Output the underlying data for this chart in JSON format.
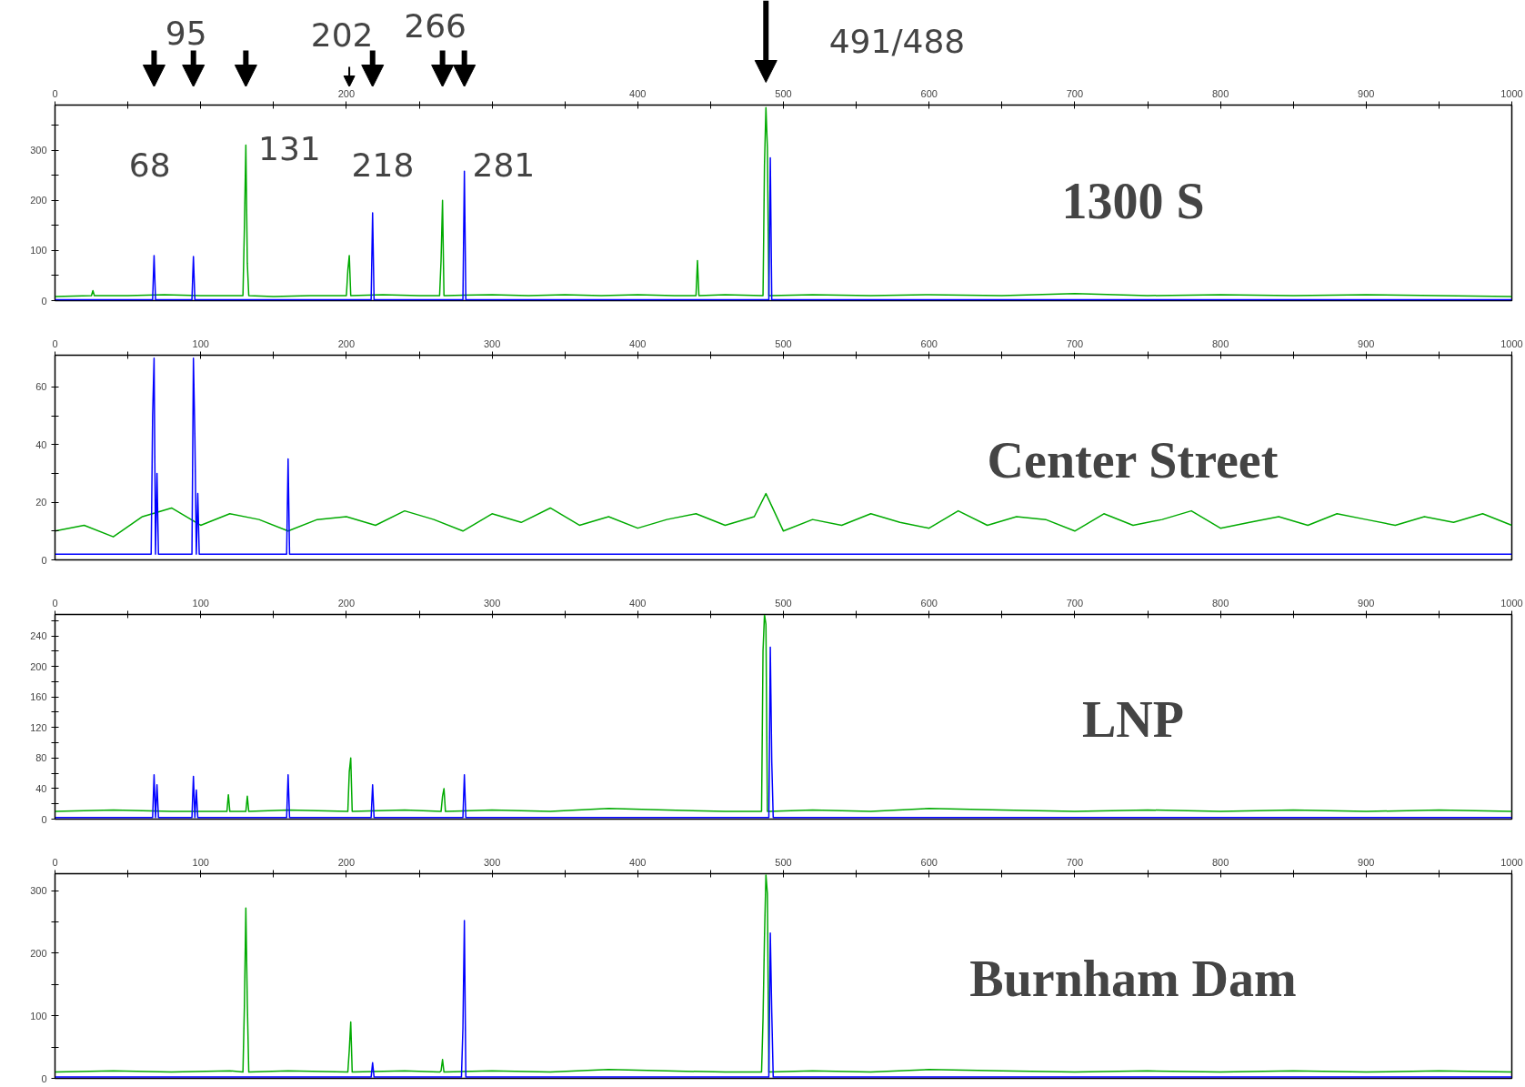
{
  "chart_data": [
    {
      "type": "line",
      "title": "1300 S",
      "xlim": [
        0,
        1000
      ],
      "ylim": [
        0,
        390
      ],
      "xticks": [
        0,
        {
          "value": 50,
          "label": null
        },
        {
          "value": 100,
          "label": null
        },
        {
          "value": 150,
          "label": null
        },
        200,
        {
          "value": 250,
          "label": null
        },
        {
          "value": 300,
          "label": null
        },
        {
          "value": 350,
          "label": null
        },
        400,
        {
          "value": 450,
          "label": null
        },
        500,
        {
          "value": 550,
          "label": null
        },
        600,
        {
          "value": 650,
          "label": null
        },
        700,
        {
          "value": 750,
          "label": null
        },
        800,
        {
          "value": 850,
          "label": null
        },
        900,
        {
          "value": 950,
          "label": null
        },
        1000
      ],
      "yticks": [
        0,
        {
          "value": 50,
          "label": null
        },
        100,
        {
          "value": 150,
          "label": null
        },
        200,
        {
          "value": 250,
          "label": null
        },
        300,
        {
          "value": 350,
          "label": null
        }
      ],
      "annotations": [
        "68",
        "95",
        "131",
        "202",
        "218",
        "266",
        "281",
        "491/488"
      ],
      "series": [
        {
          "color": "#00aa00",
          "x": [
            0,
            25,
            26,
            27,
            50,
            75,
            100,
            129,
            130,
            131,
            132,
            133,
            150,
            175,
            200,
            201,
            202,
            203,
            225,
            250,
            264,
            265,
            266,
            267,
            268,
            300,
            325,
            350,
            375,
            400,
            425,
            440,
            441,
            442,
            460,
            486,
            487,
            488,
            489,
            490,
            491,
            520,
            560,
            600,
            650,
            700,
            750,
            800,
            850,
            900,
            950,
            1000
          ],
          "values": [
            8,
            10,
            20,
            10,
            10,
            12,
            10,
            10,
            145,
            310,
            75,
            10,
            8,
            10,
            10,
            60,
            90,
            10,
            12,
            10,
            10,
            80,
            200,
            10,
            10,
            12,
            10,
            12,
            10,
            12,
            10,
            10,
            80,
            10,
            12,
            10,
            270,
            385,
            305,
            10,
            10,
            12,
            10,
            12,
            10,
            14,
            10,
            12,
            10,
            12,
            10,
            8
          ]
        },
        {
          "color": "#0000ff",
          "x": [
            0,
            67,
            68,
            69,
            94,
            95,
            96,
            217,
            218,
            219,
            280,
            281,
            282,
            490,
            491,
            492,
            1000
          ],
          "values": [
            2,
            2,
            90,
            2,
            2,
            88,
            2,
            2,
            175,
            2,
            2,
            258,
            2,
            2,
            285,
            2,
            2
          ]
        }
      ]
    },
    {
      "type": "line",
      "title": "Center Street",
      "xlim": [
        0,
        1000
      ],
      "ylim": [
        0,
        71
      ],
      "xticks": [
        0,
        {
          "value": 50,
          "label": null
        },
        100,
        {
          "value": 150,
          "label": null
        },
        200,
        {
          "value": 250,
          "label": null
        },
        300,
        {
          "value": 350,
          "label": null
        },
        400,
        {
          "value": 450,
          "label": null
        },
        500,
        {
          "value": 550,
          "label": null
        },
        600,
        {
          "value": 650,
          "label": null
        },
        700,
        {
          "value": 750,
          "label": null
        },
        800,
        {
          "value": 850,
          "label": null
        },
        900,
        {
          "value": 950,
          "label": null
        },
        1000
      ],
      "yticks": [
        0,
        {
          "value": 10,
          "label": null
        },
        20,
        {
          "value": 30,
          "label": null
        },
        40,
        {
          "value": 50,
          "label": null
        },
        60
      ],
      "series": [
        {
          "color": "#00aa00",
          "x": [
            0,
            20,
            40,
            60,
            80,
            100,
            120,
            140,
            160,
            180,
            200,
            220,
            240,
            260,
            280,
            300,
            320,
            340,
            360,
            380,
            400,
            420,
            440,
            460,
            480,
            488,
            500,
            520,
            540,
            560,
            580,
            600,
            620,
            640,
            660,
            680,
            700,
            720,
            740,
            760,
            780,
            800,
            820,
            840,
            860,
            880,
            900,
            920,
            940,
            960,
            980,
            1000
          ],
          "values": [
            10,
            12,
            8,
            15,
            18,
            12,
            16,
            14,
            10,
            14,
            15,
            12,
            17,
            14,
            10,
            16,
            13,
            18,
            12,
            15,
            11,
            14,
            16,
            12,
            15,
            23,
            10,
            14,
            12,
            16,
            13,
            11,
            17,
            12,
            15,
            14,
            10,
            16,
            12,
            14,
            17,
            11,
            13,
            15,
            12,
            16,
            14,
            12,
            15,
            13,
            16,
            12
          ]
        },
        {
          "color": "#0000ff",
          "x": [
            0,
            66,
            67,
            68,
            69,
            70,
            71,
            94,
            95,
            96,
            97,
            98,
            99,
            159,
            160,
            161,
            1000
          ],
          "values": [
            2,
            2,
            50,
            70,
            2,
            30,
            2,
            2,
            70,
            43,
            2,
            23,
            2,
            2,
            35,
            2,
            2
          ]
        }
      ]
    },
    {
      "type": "line",
      "title": "LNP",
      "xlim": [
        0,
        1000
      ],
      "ylim": [
        0,
        268
      ],
      "xticks": [
        0,
        {
          "value": 50,
          "label": null
        },
        100,
        {
          "value": 150,
          "label": null
        },
        200,
        {
          "value": 250,
          "label": null
        },
        300,
        {
          "value": 350,
          "label": null
        },
        400,
        {
          "value": 450,
          "label": null
        },
        500,
        {
          "value": 550,
          "label": null
        },
        600,
        {
          "value": 650,
          "label": null
        },
        700,
        {
          "value": 750,
          "label": null
        },
        800,
        {
          "value": 850,
          "label": null
        },
        900,
        {
          "value": 950,
          "label": null
        },
        1000
      ],
      "yticks": [
        0,
        {
          "value": 20,
          "label": null
        },
        40,
        {
          "value": 60,
          "label": null
        },
        80,
        {
          "value": 100,
          "label": null
        },
        120,
        {
          "value": 140,
          "label": null
        },
        160,
        {
          "value": 180,
          "label": null
        },
        200,
        {
          "value": 220,
          "label": null
        },
        240,
        {
          "value": 260,
          "label": null
        }
      ],
      "series": [
        {
          "color": "#00aa00",
          "x": [
            0,
            40,
            80,
            118,
            119,
            120,
            131,
            132,
            133,
            160,
            201,
            202,
            203,
            204,
            240,
            265,
            266,
            267,
            268,
            300,
            340,
            380,
            420,
            460,
            485,
            486,
            487,
            488,
            489,
            490,
            520,
            560,
            600,
            650,
            700,
            750,
            800,
            850,
            900,
            950,
            1000
          ],
          "values": [
            10,
            12,
            10,
            10,
            32,
            10,
            10,
            30,
            10,
            12,
            10,
            62,
            80,
            10,
            12,
            10,
            30,
            40,
            10,
            12,
            10,
            14,
            12,
            10,
            10,
            220,
            268,
            255,
            10,
            10,
            12,
            10,
            14,
            12,
            10,
            12,
            10,
            12,
            10,
            12,
            10
          ]
        },
        {
          "color": "#0000ff",
          "x": [
            0,
            67,
            68,
            69,
            70,
            71,
            94,
            95,
            96,
            97,
            98,
            159,
            160,
            161,
            217,
            218,
            219,
            280,
            281,
            282,
            490,
            491,
            492,
            493,
            1000
          ],
          "values": [
            2,
            2,
            58,
            2,
            45,
            2,
            2,
            56,
            2,
            38,
            2,
            2,
            58,
            2,
            2,
            45,
            2,
            2,
            58,
            2,
            2,
            225,
            75,
            2,
            2
          ]
        }
      ]
    },
    {
      "type": "line",
      "title": "Burnham Dam",
      "xlim": [
        0,
        1000
      ],
      "ylim": [
        0,
        327
      ],
      "xticks": [
        0,
        {
          "value": 50,
          "label": null
        },
        100,
        {
          "value": 150,
          "label": null
        },
        200,
        {
          "value": 250,
          "label": null
        },
        300,
        {
          "value": 350,
          "label": null
        },
        400,
        {
          "value": 450,
          "label": null
        },
        500,
        {
          "value": 550,
          "label": null
        },
        600,
        {
          "value": 650,
          "label": null
        },
        700,
        {
          "value": 750,
          "label": null
        },
        800,
        {
          "value": 850,
          "label": null
        },
        900,
        {
          "value": 950,
          "label": null
        },
        1000
      ],
      "yticks": [
        0,
        {
          "value": 50,
          "label": null
        },
        100,
        {
          "value": 150,
          "label": null
        },
        200,
        {
          "value": 250,
          "label": null
        },
        300
      ],
      "series": [
        {
          "color": "#00aa00",
          "x": [
            0,
            40,
            80,
            120,
            129,
            130,
            131,
            132,
            133,
            160,
            201,
            202,
            203,
            204,
            240,
            264,
            265,
            266,
            267,
            300,
            340,
            380,
            420,
            460,
            485,
            486,
            487,
            488,
            489,
            490,
            520,
            560,
            600,
            650,
            700,
            750,
            800,
            850,
            900,
            950,
            1000
          ],
          "values": [
            10,
            12,
            10,
            12,
            10,
            115,
            272,
            120,
            10,
            12,
            10,
            45,
            90,
            10,
            12,
            10,
            12,
            30,
            10,
            12,
            10,
            14,
            12,
            10,
            10,
            95,
            225,
            325,
            295,
            10,
            12,
            10,
            14,
            12,
            10,
            12,
            10,
            12,
            10,
            12,
            10
          ]
        },
        {
          "color": "#0000ff",
          "x": [
            0,
            217,
            218,
            219,
            279,
            280,
            281,
            282,
            490,
            491,
            492,
            493,
            1000
          ],
          "values": [
            2,
            2,
            25,
            2,
            2,
            80,
            252,
            2,
            2,
            232,
            105,
            2,
            2
          ]
        }
      ]
    }
  ]
}
